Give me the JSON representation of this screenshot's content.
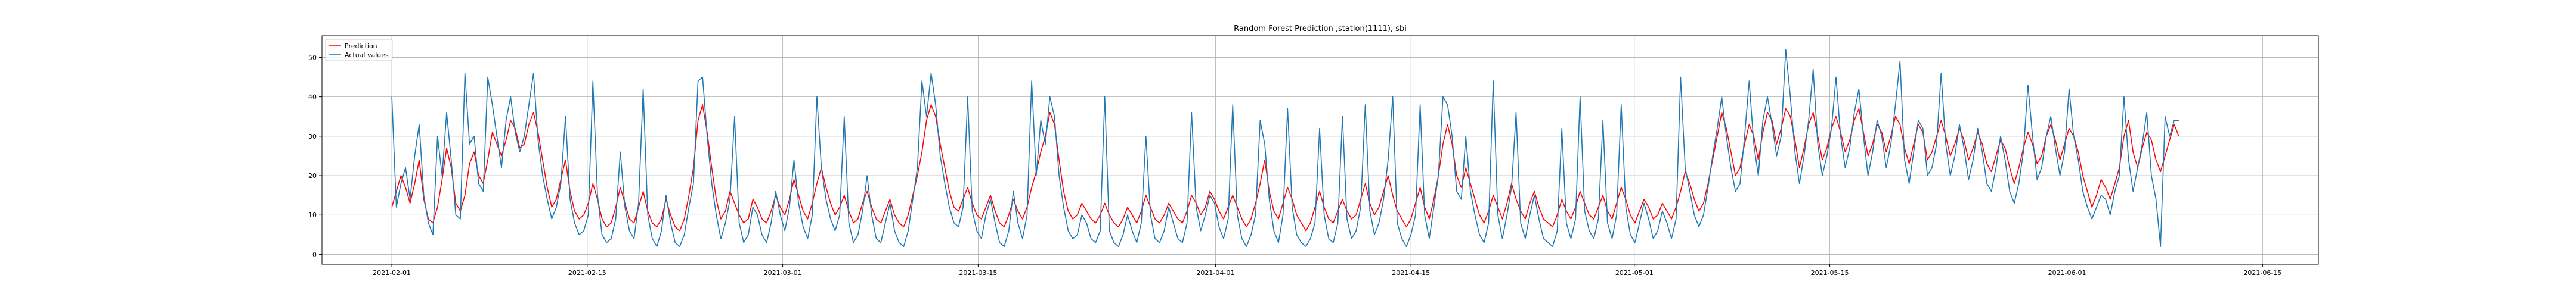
{
  "chart_data": {
    "type": "line",
    "title": "Random Forest Prediction ,station(1111), sbi",
    "xlabel": "",
    "ylabel": "",
    "x_start": "2021-02-01",
    "x_end": "2021-06-09",
    "xlim": [
      "2021-01-27",
      "2021-06-19"
    ],
    "ylim": [
      -2.5,
      55.5
    ],
    "x_ticks": [
      "2021-02-01",
      "2021-02-15",
      "2021-03-01",
      "2021-03-15",
      "2021-04-01",
      "2021-04-15",
      "2021-05-01",
      "2021-05-15",
      "2021-06-01",
      "2021-06-15"
    ],
    "y_ticks": [
      0,
      10,
      20,
      30,
      40,
      50
    ],
    "grid": true,
    "legend_position": "top-left",
    "series": [
      {
        "name": "Prediction",
        "color": "#ff0000",
        "values": [
          12,
          16,
          20,
          17,
          13,
          18,
          24,
          14,
          9,
          8,
          12,
          19,
          27,
          22,
          13,
          11,
          15,
          23,
          26,
          20,
          18,
          24,
          31,
          28,
          25,
          29,
          34,
          32,
          27,
          28,
          33,
          36,
          31,
          24,
          17,
          12,
          14,
          19,
          24,
          16,
          11,
          9,
          10,
          13,
          18,
          14,
          9,
          7,
          8,
          12,
          17,
          13,
          9,
          8,
          12,
          16,
          11,
          8,
          7,
          9,
          14,
          10,
          7,
          6,
          9,
          15,
          22,
          34,
          38,
          31,
          22,
          14,
          9,
          11,
          16,
          13,
          10,
          8,
          9,
          14,
          12,
          9,
          8,
          11,
          15,
          12,
          10,
          14,
          19,
          15,
          11,
          9,
          13,
          18,
          22,
          17,
          13,
          10,
          12,
          15,
          11,
          8,
          9,
          13,
          16,
          12,
          9,
          8,
          11,
          14,
          10,
          8,
          7,
          10,
          15,
          20,
          26,
          34,
          38,
          35,
          28,
          22,
          16,
          12,
          11,
          14,
          17,
          13,
          10,
          9,
          12,
          15,
          11,
          8,
          7,
          10,
          14,
          11,
          9,
          12,
          17,
          21,
          26,
          30,
          36,
          33,
          24,
          16,
          11,
          9,
          10,
          13,
          11,
          9,
          8,
          10,
          13,
          10,
          8,
          7,
          9,
          12,
          10,
          8,
          11,
          15,
          12,
          9,
          8,
          10,
          13,
          11,
          9,
          8,
          11,
          15,
          13,
          10,
          12,
          16,
          14,
          11,
          9,
          12,
          15,
          12,
          9,
          7,
          9,
          13,
          18,
          24,
          16,
          11,
          9,
          13,
          17,
          14,
          10,
          8,
          6,
          8,
          12,
          16,
          12,
          9,
          8,
          11,
          14,
          11,
          9,
          10,
          14,
          18,
          13,
          10,
          12,
          16,
          20,
          15,
          11,
          9,
          7,
          9,
          13,
          17,
          12,
          9,
          14,
          20,
          28,
          33,
          28,
          20,
          17,
          22,
          18,
          14,
          10,
          8,
          11,
          15,
          12,
          9,
          13,
          18,
          14,
          11,
          9,
          13,
          16,
          12,
          9,
          8,
          7,
          10,
          14,
          11,
          9,
          12,
          16,
          13,
          10,
          9,
          12,
          15,
          11,
          9,
          13,
          17,
          14,
          10,
          8,
          11,
          14,
          12,
          9,
          10,
          13,
          11,
          9,
          12,
          16,
          21,
          18,
          14,
          11,
          13,
          18,
          24,
          30,
          36,
          32,
          26,
          20,
          22,
          28,
          33,
          30,
          24,
          31,
          36,
          34,
          28,
          32,
          37,
          35,
          29,
          22,
          27,
          33,
          36,
          30,
          24,
          27,
          32,
          35,
          31,
          26,
          29,
          34,
          37,
          31,
          25,
          28,
          33,
          31,
          26,
          30,
          35,
          33,
          27,
          23,
          28,
          33,
          31,
          24,
          26,
          30,
          34,
          30,
          25,
          28,
          32,
          29,
          24,
          27,
          31,
          28,
          23,
          21,
          25,
          29,
          27,
          22,
          18,
          22,
          27,
          31,
          28,
          23,
          25,
          30,
          33,
          29,
          24,
          28,
          32,
          30,
          26,
          20,
          16,
          12,
          15,
          19,
          17,
          14,
          18,
          22,
          30,
          34,
          26,
          22,
          27,
          31,
          29,
          24,
          21,
          25,
          29,
          33,
          30
        ],
        "notes": ""
      },
      {
        "name": "Actual values",
        "color": "#1f77b4",
        "values": [
          40,
          12,
          18,
          22,
          14,
          25,
          33,
          15,
          8,
          5,
          30,
          20,
          36,
          24,
          10,
          9,
          46,
          28,
          30,
          18,
          16,
          45,
          38,
          30,
          22,
          34,
          40,
          31,
          26,
          30,
          38,
          46,
          29,
          20,
          14,
          9,
          12,
          18,
          35,
          14,
          8,
          5,
          6,
          10,
          44,
          15,
          5,
          3,
          4,
          9,
          26,
          12,
          6,
          4,
          13,
          42,
          10,
          4,
          2,
          6,
          15,
          8,
          3,
          2,
          5,
          12,
          18,
          44,
          45,
          30,
          18,
          10,
          4,
          8,
          14,
          35,
          8,
          3,
          5,
          12,
          10,
          5,
          3,
          8,
          16,
          10,
          6,
          12,
          24,
          13,
          7,
          4,
          10,
          40,
          22,
          14,
          9,
          6,
          10,
          35,
          8,
          3,
          5,
          11,
          20,
          10,
          4,
          3,
          8,
          13,
          6,
          3,
          2,
          6,
          14,
          22,
          44,
          35,
          46,
          38,
          25,
          18,
          12,
          8,
          7,
          12,
          40,
          11,
          6,
          4,
          10,
          14,
          8,
          3,
          2,
          6,
          16,
          8,
          4,
          10,
          44,
          20,
          34,
          28,
          40,
          35,
          20,
          12,
          6,
          4,
          5,
          10,
          8,
          4,
          3,
          6,
          40,
          6,
          3,
          2,
          5,
          10,
          6,
          3,
          8,
          30,
          10,
          4,
          3,
          6,
          12,
          8,
          4,
          3,
          8,
          36,
          12,
          6,
          10,
          15,
          13,
          7,
          4,
          9,
          38,
          10,
          4,
          2,
          5,
          10,
          34,
          28,
          14,
          6,
          3,
          10,
          37,
          12,
          5,
          3,
          2,
          4,
          8,
          32,
          10,
          4,
          3,
          8,
          35,
          9,
          4,
          6,
          12,
          38,
          11,
          5,
          8,
          14,
          24,
          40,
          8,
          4,
          2,
          5,
          10,
          38,
          10,
          4,
          12,
          20,
          40,
          38,
          30,
          16,
          14,
          30,
          16,
          10,
          5,
          3,
          8,
          44,
          10,
          4,
          10,
          17,
          36,
          8,
          4,
          10,
          15,
          9,
          4,
          3,
          2,
          6,
          32,
          8,
          4,
          9,
          40,
          11,
          6,
          4,
          9,
          34,
          8,
          4,
          10,
          38,
          12,
          5,
          3,
          8,
          13,
          9,
          4,
          6,
          11,
          8,
          4,
          9,
          45,
          22,
          16,
          10,
          7,
          10,
          17,
          25,
          32,
          40,
          30,
          22,
          16,
          18,
          30,
          44,
          28,
          20,
          34,
          40,
          33,
          25,
          30,
          52,
          40,
          26,
          18,
          25,
          34,
          47,
          28,
          20,
          25,
          32,
          45,
          30,
          22,
          27,
          36,
          42,
          30,
          20,
          26,
          34,
          30,
          22,
          28,
          38,
          49,
          24,
          18,
          26,
          34,
          32,
          20,
          22,
          28,
          46,
          28,
          20,
          25,
          33,
          27,
          19,
          24,
          32,
          26,
          18,
          16,
          22,
          30,
          24,
          16,
          13,
          18,
          26,
          43,
          30,
          19,
          22,
          30,
          35,
          27,
          20,
          26,
          42,
          30,
          24,
          16,
          12,
          9,
          12,
          15,
          14,
          10,
          16,
          20,
          40,
          24,
          16,
          22,
          28,
          36,
          20,
          14,
          2,
          35,
          30,
          34,
          34
        ]
      }
    ]
  }
}
